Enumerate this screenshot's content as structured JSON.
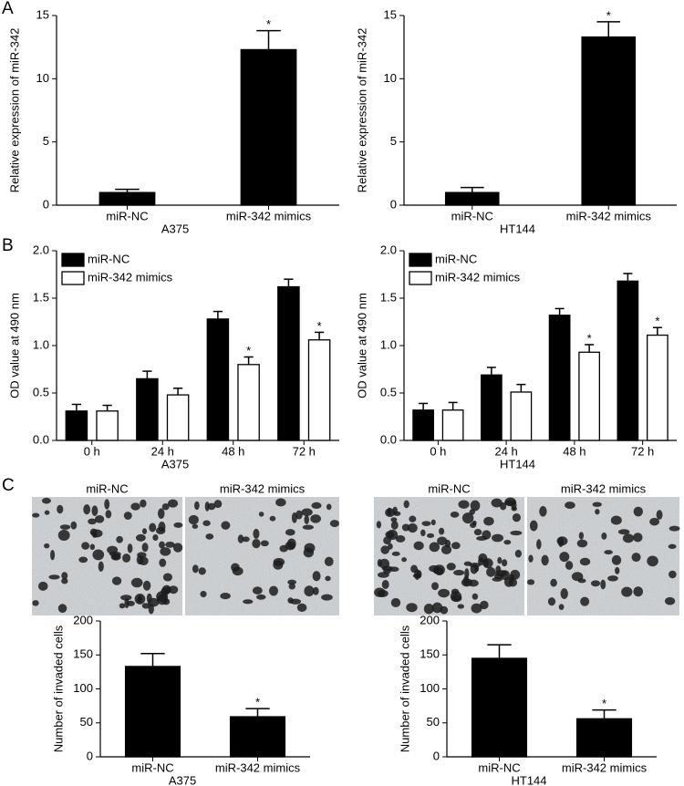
{
  "panel_labels": [
    "A",
    "B",
    "C"
  ],
  "micrographs": [
    [
      "miR-NC",
      "miR-342 mimics"
    ],
    [
      "miR-NC",
      "miR-342 mimics"
    ]
  ],
  "chart_data": [
    {
      "type": "bar",
      "ylabel": "Relative expression of miR-342",
      "xlabel": "A375",
      "categories": [
        "miR-NC",
        "miR-342 mimics"
      ],
      "series": [
        {
          "color": "#000000",
          "values": [
            1.0,
            12.3
          ],
          "errors": [
            0.25,
            1.5
          ],
          "significance": [
            null,
            "*"
          ]
        }
      ],
      "ylim": [
        0,
        15
      ],
      "yticks": [
        0,
        5,
        10,
        15
      ]
    },
    {
      "type": "bar",
      "ylabel": "Relative expression of miR-342",
      "xlabel": "HT144",
      "categories": [
        "miR-NC",
        "miR-342 mimics"
      ],
      "series": [
        {
          "color": "#000000",
          "values": [
            1.0,
            13.3
          ],
          "errors": [
            0.4,
            1.2
          ],
          "significance": [
            null,
            "*"
          ]
        }
      ],
      "ylim": [
        0,
        15
      ],
      "yticks": [
        0,
        5,
        10,
        15
      ]
    },
    {
      "type": "bar",
      "ylabel": "OD value at 490 nm",
      "xlabel": "A375",
      "categories": [
        "0 h",
        "24 h",
        "48 h",
        "72 h"
      ],
      "legend": "upper left",
      "series": [
        {
          "name": "miR-NC",
          "color": "#000000",
          "values": [
            0.31,
            0.65,
            1.28,
            1.62
          ],
          "errors": [
            0.07,
            0.08,
            0.08,
            0.08
          ],
          "significance": [
            null,
            null,
            null,
            null
          ]
        },
        {
          "name": "miR-342 mimics",
          "color": "#ffffff",
          "values": [
            0.31,
            0.48,
            0.8,
            1.06
          ],
          "errors": [
            0.06,
            0.07,
            0.08,
            0.08
          ],
          "significance": [
            null,
            null,
            "*",
            "*"
          ]
        }
      ],
      "ylim": [
        0,
        2
      ],
      "yticks": [
        {
          "value": 0,
          "label": "0.0"
        },
        0.5,
        {
          "value": 1,
          "label": "1.0"
        },
        1.5,
        {
          "value": 2,
          "label": "2.0"
        }
      ]
    },
    {
      "type": "bar",
      "ylabel": "OD value at 490 nm",
      "xlabel": "HT144",
      "categories": [
        "0 h",
        "24 h",
        "48 h",
        "72 h"
      ],
      "legend": "upper left",
      "series": [
        {
          "name": "miR-NC",
          "color": "#000000",
          "values": [
            0.32,
            0.69,
            1.32,
            1.68
          ],
          "errors": [
            0.07,
            0.08,
            0.07,
            0.08
          ],
          "significance": [
            null,
            null,
            null,
            null
          ]
        },
        {
          "name": "miR-342 mimics",
          "color": "#ffffff",
          "values": [
            0.32,
            0.51,
            0.93,
            1.11
          ],
          "errors": [
            0.08,
            0.08,
            0.08,
            0.08
          ],
          "significance": [
            null,
            null,
            "*",
            "*"
          ]
        }
      ],
      "ylim": [
        0,
        2
      ],
      "yticks": [
        {
          "value": 0,
          "label": "0.0"
        },
        0.5,
        {
          "value": 1,
          "label": "1.0"
        },
        1.5,
        {
          "value": 2,
          "label": "2.0"
        }
      ]
    },
    {
      "type": "bar",
      "ylabel": "Number of invaded cells",
      "xlabel": "A375",
      "categories": [
        "miR-NC",
        "miR-342 mimics"
      ],
      "series": [
        {
          "color": "#000000",
          "values": [
            133,
            59
          ],
          "errors": [
            19,
            12
          ],
          "significance": [
            null,
            "*"
          ]
        }
      ],
      "ylim": [
        0,
        200
      ],
      "yticks": [
        0,
        50,
        100,
        150,
        200
      ]
    },
    {
      "type": "bar",
      "ylabel": "Number of invaded cells",
      "xlabel": "HT144",
      "categories": [
        "miR-NC",
        "miR-342 mimics"
      ],
      "series": [
        {
          "color": "#000000",
          "values": [
            145,
            56
          ],
          "errors": [
            20,
            13
          ],
          "significance": [
            null,
            "*"
          ]
        }
      ],
      "ylim": [
        0,
        200
      ],
      "yticks": [
        0,
        50,
        100,
        150,
        200
      ]
    }
  ]
}
